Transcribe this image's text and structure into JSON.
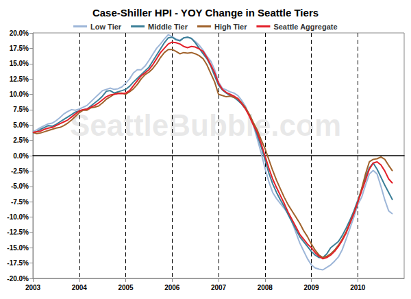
{
  "chart_data": {
    "type": "line",
    "title": "Case-Shiller HPI - YOY Change in Seattle Tiers",
    "annotations": [
      "SeattleBubble.com"
    ],
    "legend": "top",
    "grid": "x",
    "x": [
      2003,
      2003.083,
      2003.167,
      2003.25,
      2003.333,
      2003.417,
      2003.5,
      2003.583,
      2003.667,
      2003.75,
      2003.833,
      2003.917,
      2004,
      2004.083,
      2004.167,
      2004.25,
      2004.333,
      2004.417,
      2004.5,
      2004.583,
      2004.667,
      2004.75,
      2004.833,
      2004.917,
      2005,
      2005.083,
      2005.167,
      2005.25,
      2005.333,
      2005.417,
      2005.5,
      2005.583,
      2005.667,
      2005.75,
      2005.833,
      2005.917,
      2006,
      2006.083,
      2006.167,
      2006.25,
      2006.333,
      2006.417,
      2006.5,
      2006.583,
      2006.667,
      2006.75,
      2006.833,
      2006.917,
      2007,
      2007.083,
      2007.167,
      2007.25,
      2007.333,
      2007.417,
      2007.5,
      2007.583,
      2007.667,
      2007.75,
      2007.833,
      2007.917,
      2008,
      2008.083,
      2008.167,
      2008.25,
      2008.333,
      2008.417,
      2008.5,
      2008.583,
      2008.667,
      2008.75,
      2008.833,
      2008.917,
      2009,
      2009.083,
      2009.167,
      2009.25,
      2009.333,
      2009.417,
      2009.5,
      2009.583,
      2009.667,
      2009.75,
      2009.833,
      2009.917,
      2010,
      2010.083,
      2010.167,
      2010.25,
      2010.333,
      2010.417,
      2010.5,
      2010.583,
      2010.667,
      2010.75
    ],
    "xlim": [
      2003,
      2011
    ],
    "xticks": [
      2003,
      2004,
      2005,
      2006,
      2007,
      2008,
      2009,
      2010
    ],
    "ylim": [
      -20,
      20
    ],
    "yticks": [
      {
        "value": -20,
        "label": "-20.0%"
      },
      {
        "value": -17.5,
        "label": "-17.5%"
      },
      {
        "value": -15,
        "label": "-15.0%"
      },
      {
        "value": -12.5,
        "label": "-12.5%"
      },
      {
        "value": -10,
        "label": "-10.0%"
      },
      {
        "value": -7.5,
        "label": "-7.5%"
      },
      {
        "value": -5,
        "label": "-5.0%"
      },
      {
        "value": -2.5,
        "label": "-2.5%"
      },
      {
        "value": 0,
        "label": "0.0%"
      },
      {
        "value": 2.5,
        "label": "2.5%"
      },
      {
        "value": 5,
        "label": "5.0%"
      },
      {
        "value": 7.5,
        "label": "7.5%"
      },
      {
        "value": 10,
        "label": "10.0%"
      },
      {
        "value": 12.5,
        "label": "12.5%"
      },
      {
        "value": 15,
        "label": "15.0%"
      },
      {
        "value": 17.5,
        "label": "17.5%"
      },
      {
        "value": 20,
        "label": "20.0%"
      }
    ],
    "series": [
      {
        "name": "Low Tier",
        "color": "#9db6d8",
        "values": [
          3.9,
          4.2,
          4.6,
          4.9,
          5.2,
          5.3,
          5.7,
          6.2,
          6.8,
          7.2,
          7.5,
          7.4,
          7.6,
          7.9,
          8.2,
          8.8,
          9.4,
          10.0,
          10.6,
          10.8,
          11.0,
          10.8,
          10.9,
          11.2,
          11.8,
          12.5,
          13.5,
          14.0,
          14.0,
          14.6,
          15.5,
          16.5,
          17.5,
          18.2,
          19.0,
          19.7,
          19.4,
          19.0,
          18.8,
          19.2,
          19.3,
          19.1,
          18.6,
          18.0,
          17.2,
          16.2,
          15.4,
          14.0,
          12.0,
          11.0,
          10.7,
          10.4,
          10.2,
          9.8,
          9.0,
          8.0,
          6.5,
          5.0,
          2.8,
          0.5,
          -2.0,
          -4.2,
          -6.0,
          -7.0,
          -7.8,
          -8.6,
          -9.5,
          -10.8,
          -12.5,
          -14.2,
          -15.5,
          -16.8,
          -17.8,
          -18.3,
          -18.5,
          -18.6,
          -18.2,
          -17.8,
          -17.2,
          -16.5,
          -15.3,
          -13.6,
          -11.8,
          -10.0,
          -8.0,
          -6.8,
          -4.8,
          -3.0,
          -2.4,
          -3.0,
          -5.0,
          -7.2,
          -9.0,
          -9.5
        ]
      },
      {
        "name": "Middle Tier",
        "color": "#3b7f98",
        "values": [
          3.7,
          3.9,
          4.3,
          4.6,
          4.9,
          4.8,
          5.1,
          5.5,
          5.9,
          6.3,
          6.7,
          7.1,
          7.3,
          7.5,
          7.6,
          8.1,
          8.6,
          9.1,
          9.7,
          10.5,
          10.6,
          10.2,
          10.4,
          10.6,
          10.8,
          11.3,
          12.0,
          12.6,
          13.2,
          13.8,
          14.4,
          15.4,
          16.4,
          17.4,
          18.4,
          19.2,
          19.3,
          18.9,
          18.7,
          19.2,
          19.3,
          19.1,
          18.4,
          17.5,
          16.6,
          15.8,
          14.6,
          13.0,
          11.5,
          10.7,
          10.2,
          9.8,
          9.5,
          9.0,
          8.4,
          7.6,
          6.6,
          5.2,
          3.4,
          1.5,
          -0.6,
          -2.8,
          -4.6,
          -6.0,
          -7.2,
          -8.3,
          -9.6,
          -10.8,
          -12.0,
          -13.2,
          -14.0,
          -14.8,
          -15.6,
          -16.2,
          -16.6,
          -16.6,
          -16.0,
          -15.0,
          -14.5,
          -14.0,
          -13.0,
          -11.8,
          -10.5,
          -9.0,
          -7.3,
          -5.5,
          -3.5,
          -2.0,
          -1.2,
          -2.2,
          -3.5,
          -4.8,
          -6.0,
          -7.2
        ]
      },
      {
        "name": "High Tier",
        "color": "#a0622b",
        "values": [
          3.8,
          3.6,
          3.7,
          3.9,
          4.1,
          4.3,
          4.5,
          4.6,
          4.9,
          5.3,
          5.8,
          6.4,
          7.0,
          7.4,
          7.4,
          7.8,
          7.9,
          8.1,
          8.6,
          9.2,
          9.6,
          10.0,
          10.2,
          10.2,
          10.0,
          10.4,
          10.9,
          11.6,
          12.5,
          13.2,
          13.6,
          14.2,
          15.0,
          16.0,
          16.8,
          17.3,
          17.3,
          17.0,
          16.6,
          16.8,
          16.7,
          16.8,
          16.6,
          16.3,
          15.8,
          14.8,
          13.4,
          12.0,
          10.0,
          9.8,
          9.6,
          9.7,
          9.5,
          9.3,
          8.6,
          7.8,
          6.7,
          5.4,
          4.2,
          2.6,
          1.2,
          -0.6,
          -2.4,
          -4.0,
          -5.4,
          -6.8,
          -8.0,
          -9.0,
          -10.0,
          -11.0,
          -12.2,
          -13.2,
          -14.4,
          -15.4,
          -16.2,
          -16.6,
          -16.4,
          -16.0,
          -15.4,
          -14.6,
          -13.6,
          -12.4,
          -11.0,
          -9.4,
          -7.6,
          -5.4,
          -3.0,
          -1.0,
          -0.6,
          -0.5,
          -0.2,
          -0.6,
          -1.6,
          -2.5
        ]
      },
      {
        "name": "Seattle Aggregate",
        "color": "#e3202a",
        "values": [
          3.8,
          3.9,
          4.0,
          4.3,
          4.5,
          4.6,
          4.9,
          5.2,
          5.5,
          5.8,
          6.3,
          6.8,
          7.3,
          7.5,
          7.6,
          7.9,
          8.2,
          8.6,
          9.1,
          9.6,
          9.9,
          10.0,
          10.1,
          10.1,
          10.2,
          10.6,
          11.4,
          12.2,
          13.0,
          13.5,
          14.0,
          14.8,
          15.8,
          16.8,
          17.5,
          18.2,
          18.5,
          18.4,
          18.2,
          17.8,
          17.6,
          17.8,
          17.7,
          17.4,
          17.0,
          16.0,
          14.8,
          13.5,
          11.8,
          10.8,
          10.3,
          10.0,
          9.7,
          9.3,
          8.5,
          7.6,
          6.4,
          5.0,
          3.8,
          2.0,
          0.0,
          -2.0,
          -3.8,
          -5.2,
          -6.5,
          -7.8,
          -9.2,
          -10.4,
          -11.6,
          -12.8,
          -13.6,
          -14.4,
          -15.0,
          -15.8,
          -16.4,
          -16.8,
          -16.6,
          -16.2,
          -15.6,
          -14.8,
          -13.8,
          -12.6,
          -11.0,
          -9.4,
          -7.6,
          -5.8,
          -4.0,
          -2.2,
          -1.2,
          -1.0,
          -1.5,
          -2.5,
          -3.8,
          -4.5
        ]
      }
    ]
  }
}
